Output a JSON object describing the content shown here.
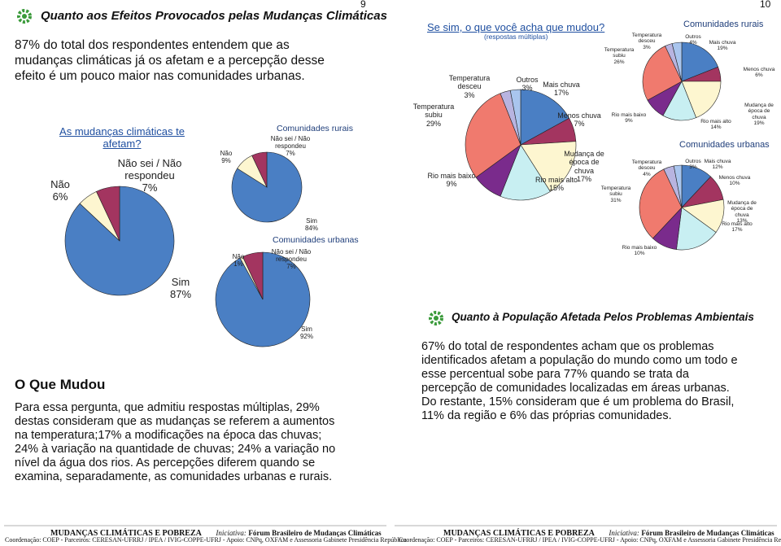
{
  "page_numbers": [
    "9",
    "10"
  ],
  "left": {
    "heading": "Quanto aos Efeitos Provocados pelas Mudanças Climáticas",
    "intro": "87% do total dos respondentes entendem que as mudanças climáticas já os afetam e a percepção desse efeito é um pouco maior nas comunidades urbanas.",
    "section_title": "O Que Mudou",
    "body": "Para essa pergunta, que admitiu respostas múltiplas, 29% destas consideram que as mudanças se referem a aumentos na temperatura;17% a modificações na época das chuvas; 24% à variação na quantidade de chuvas; 24% a variação no nível da água dos rios. As percepções diferem quando se examina, separadamente, as comunidades urbanas e rurais."
  },
  "right": {
    "heading": "Quanto à População Afetada Pelos Problemas Ambientais",
    "body": "67% do total de respondentes acham que os problemas identificados afetam a população do mundo como um todo e esse percentual sobe para 77% quando se trata da percepção de comunidades localizadas em áreas urbanas. Do restante, 15% consideram que é um problema do Brasil, 11% da região e 6% das próprias comunidades."
  },
  "charts": [
    {
      "type": "pie",
      "title": "As mudanças climáticas te afetam?",
      "categories": [
        "Sim",
        "Não",
        "Não sei / Não respondeu"
      ],
      "values": [
        87,
        6,
        7
      ],
      "value_labels": [
        "87%",
        "6%",
        "7%"
      ],
      "colors": [
        "#4a7fc4",
        "#fdf6d0",
        "#a33560"
      ]
    },
    {
      "type": "pie",
      "title": "Comunidades rurais",
      "categories": [
        "Sim",
        "Não",
        "Não sei / Não respondeu"
      ],
      "values": [
        84,
        9,
        7
      ],
      "value_labels": [
        "84%",
        "9%",
        "7%"
      ],
      "colors": [
        "#4a7fc4",
        "#fdf6d0",
        "#a33560"
      ]
    },
    {
      "type": "pie",
      "title": "Comunidades urbanas",
      "categories": [
        "Sim",
        "Não",
        "Não sei / Não respondeu"
      ],
      "values": [
        92,
        1,
        7
      ],
      "value_labels": [
        "92%",
        "1%",
        "7%"
      ],
      "colors": [
        "#4a7fc4",
        "#fdf6d0",
        "#a33560"
      ]
    },
    {
      "type": "pie",
      "title": "Se sim, o que você acha que mudou?",
      "subtitle": "(respostas múltiplas)",
      "categories": [
        "Mais chuva",
        "Menos chuva",
        "Mudança de época de chuva",
        "Rio mais alto",
        "Rio mais baixo",
        "Temperatura subiu",
        "Temperatura desceu",
        "Outros"
      ],
      "values": [
        17,
        7,
        17,
        15,
        9,
        29,
        3,
        3
      ],
      "value_labels": [
        "17%",
        "7%",
        "17%",
        "15%",
        "9%",
        "29%",
        "3%",
        "3%"
      ],
      "colors": [
        "#4a7fc4",
        "#a33560",
        "#fdf6d0",
        "#c8eff2",
        "#7a2b8c",
        "#f07a6e",
        "#b8b4e0",
        "#a9c5ee"
      ]
    },
    {
      "type": "pie",
      "title": "Comunidades rurais",
      "categories": [
        "Mais chuva",
        "Menos chuva",
        "Mudança de época de chuva",
        "Rio mais alto",
        "Rio mais baixo",
        "Temperatura subiu",
        "Temperatura desceu",
        "Outros"
      ],
      "values": [
        19,
        6,
        19,
        14,
        9,
        26,
        3,
        4
      ],
      "value_labels": [
        "19%",
        "6%",
        "19%",
        "14%",
        "9%",
        "26%",
        "3%",
        "4%"
      ],
      "colors": [
        "#4a7fc4",
        "#a33560",
        "#fdf6d0",
        "#c8eff2",
        "#7a2b8c",
        "#f07a6e",
        "#b8b4e0",
        "#a9c5ee"
      ]
    },
    {
      "type": "pie",
      "title": "Comunidades urbanas",
      "categories": [
        "Mais chuva",
        "Menos chuva",
        "Mudança de época de chuva",
        "Rio mais alto",
        "Rio mais baixo",
        "Temperatura subiu",
        "Temperatura desceu",
        "Outros"
      ],
      "values": [
        12,
        10,
        13,
        17,
        10,
        31,
        4,
        3
      ],
      "value_labels": [
        "12%",
        "10%",
        "13%",
        "17%",
        "10%",
        "31%",
        "4%",
        "3%"
      ],
      "colors": [
        "#4a7fc4",
        "#a33560",
        "#fdf6d0",
        "#c8eff2",
        "#7a2b8c",
        "#f07a6e",
        "#b8b4e0",
        "#a9c5ee"
      ]
    }
  ],
  "footer": {
    "brand": "MUDANÇAS CLIMÁTICAS E POBREZA",
    "initiative_label": "Iniciativa:",
    "initiative": "Fórum Brasileiro de Mudanças Climáticas",
    "coordination": "Coordenação: COEP - Parceiros: CERESAN-UFRRJ / IPEA / IVIG-COPPE-UFRJ - Apoio: CNPq, OXFAM e Assessoria Gabinete Presidência República"
  }
}
